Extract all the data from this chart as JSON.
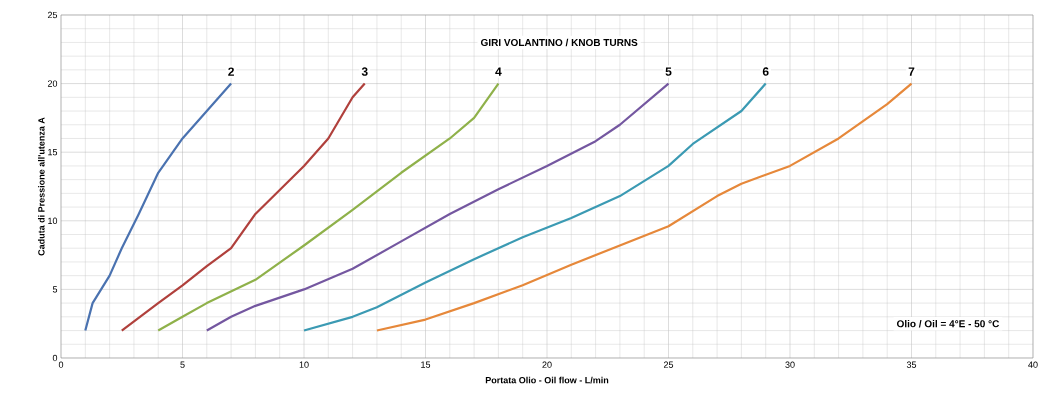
{
  "chart_data": {
    "type": "line",
    "xlabel": "Portata Olio - Oil flow  - L/min",
    "ylabel": "Caduta di Pressione all'utenza A",
    "xlim": [
      0,
      40
    ],
    "ylim": [
      0,
      25
    ],
    "xticks": [
      0,
      5,
      10,
      15,
      20,
      25,
      30,
      35,
      40
    ],
    "yticks": [
      0,
      5,
      10,
      15,
      20,
      25
    ],
    "grid": true,
    "legend": false,
    "marker": "none",
    "line_style": "solid",
    "annotations": [
      "GIRI VOLANTINO / KNOB TURNS",
      "Olio / Oil = 4°E - 50 °C"
    ],
    "series": [
      {
        "name": "2",
        "color": "#4a72b0",
        "x": [
          1,
          1.3,
          2,
          2.5,
          3.2,
          4,
          5,
          6,
          7
        ],
        "values": [
          2,
          4,
          6,
          8,
          10.5,
          13.5,
          16,
          18,
          20
        ]
      },
      {
        "name": "3",
        "color": "#b0403c",
        "x": [
          2.5,
          4,
          5,
          6,
          7,
          8,
          10,
          11,
          12,
          12.5
        ],
        "values": [
          2,
          4,
          5.3,
          6.7,
          8,
          10.5,
          14,
          16,
          19,
          20
        ]
      },
      {
        "name": "4",
        "color": "#8fb14a",
        "x": [
          4,
          5,
          6,
          8,
          10,
          12,
          14,
          16,
          17,
          18
        ],
        "values": [
          2,
          3,
          4,
          5.7,
          8.2,
          10.8,
          13.5,
          16,
          17.5,
          20
        ]
      },
      {
        "name": "5",
        "color": "#7457a0",
        "x": [
          6,
          7,
          8,
          10,
          12,
          14,
          16,
          18,
          20,
          22,
          23,
          25
        ],
        "values": [
          2,
          3,
          3.8,
          5,
          6.5,
          8.5,
          10.5,
          12.3,
          14,
          15.8,
          17,
          20
        ]
      },
      {
        "name": "6",
        "color": "#3b9ab3",
        "x": [
          10,
          12,
          13,
          15,
          17,
          19,
          21,
          23,
          25,
          26,
          28,
          29
        ],
        "values": [
          2,
          3,
          3.7,
          5.5,
          7.2,
          8.8,
          10.2,
          11.8,
          14,
          15.6,
          18,
          20
        ]
      },
      {
        "name": "7",
        "color": "#e6883a",
        "x": [
          13,
          15,
          17,
          19,
          21,
          23,
          25,
          27,
          28,
          30,
          32,
          34,
          35
        ],
        "values": [
          2,
          2.8,
          4,
          5.3,
          6.8,
          8.2,
          9.6,
          11.8,
          12.7,
          14,
          16,
          18.5,
          20
        ]
      }
    ]
  }
}
